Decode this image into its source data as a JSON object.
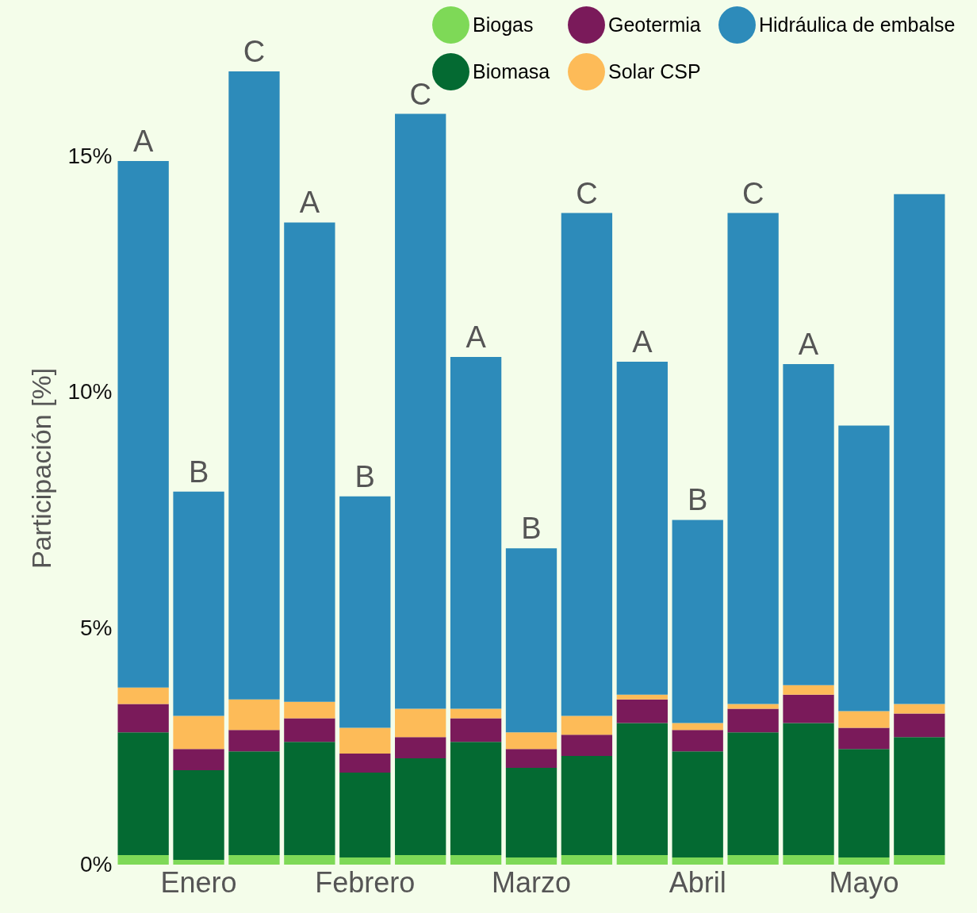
{
  "chart_data": {
    "type": "bar",
    "stacked": true,
    "ylabel": "Participación [%]",
    "categories": [
      null,
      "Enero",
      null,
      null,
      "Febrero",
      null,
      null,
      "Marzo",
      null,
      null,
      "Abril",
      null,
      null,
      "Mayo",
      null
    ],
    "ylim": [
      0,
      16.8
    ],
    "yticks": [
      {
        "value": 0,
        "label": "0%"
      },
      {
        "value": 5,
        "label": "5%"
      },
      {
        "value": 10,
        "label": "10%"
      },
      {
        "value": 15,
        "label": "15%"
      }
    ],
    "series": [
      {
        "name": "Biogas",
        "color": "#7ed957",
        "values": [
          0.2,
          0.1,
          0.2,
          0.2,
          0.15,
          0.2,
          0.2,
          0.15,
          0.2,
          0.2,
          0.15,
          0.2,
          0.2,
          0.15,
          0.2
        ]
      },
      {
        "name": "Biomasa",
        "color": "#046a32",
        "values": [
          2.6,
          1.9,
          2.2,
          2.4,
          1.8,
          2.05,
          2.4,
          1.9,
          2.1,
          2.8,
          2.25,
          2.6,
          2.8,
          2.3,
          2.5
        ]
      },
      {
        "name": "Geotermia",
        "color": "#7a1a5a",
        "values": [
          0.6,
          0.45,
          0.45,
          0.5,
          0.4,
          0.45,
          0.5,
          0.4,
          0.45,
          0.5,
          0.45,
          0.5,
          0.6,
          0.45,
          0.5
        ]
      },
      {
        "name": "Solar CSP",
        "color": "#fdbb58",
        "values": [
          0.35,
          0.7,
          0.65,
          0.35,
          0.55,
          0.6,
          0.2,
          0.35,
          0.4,
          0.1,
          0.15,
          0.1,
          0.2,
          0.35,
          0.2
        ]
      },
      {
        "name": "Hidráulica de embalse",
        "color": "#2d8bba",
        "values": [
          11.15,
          4.75,
          13.3,
          10.15,
          4.9,
          12.6,
          7.45,
          3.9,
          10.65,
          7.05,
          4.3,
          10.4,
          6.8,
          6.05,
          10.8
        ],
        "value_labels": [
          "A",
          "B",
          "C",
          "A",
          "B",
          "C",
          "A",
          "B",
          "C",
          "A",
          "B",
          "C",
          "A",
          null,
          null
        ]
      }
    ],
    "legend": "top right",
    "grid": false
  }
}
